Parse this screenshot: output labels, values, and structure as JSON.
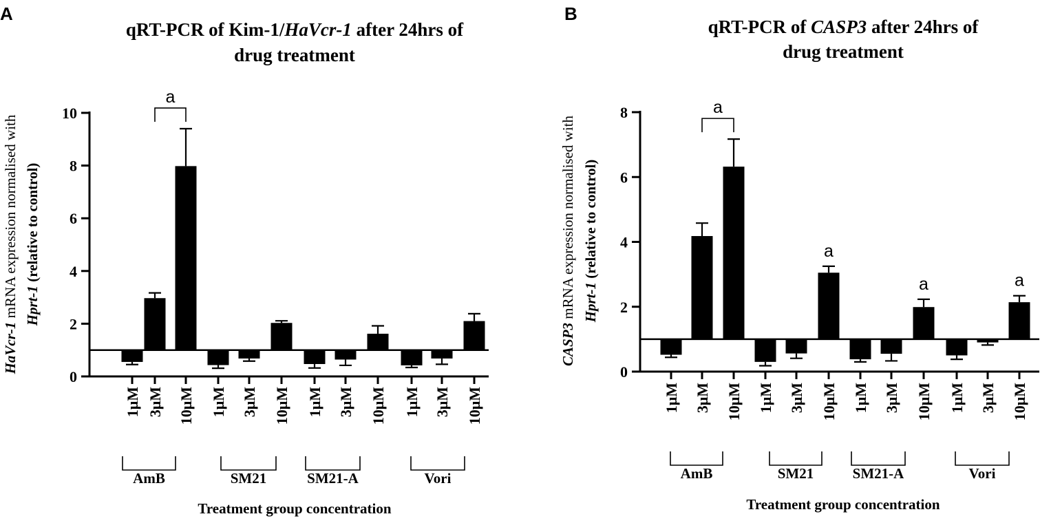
{
  "chart_data": [
    {
      "panel_label": "A",
      "type": "bar",
      "title_line1_pre": "qRT-PCR of Kim-1/",
      "title_line1_italic": "HaVcr-1",
      "title_line1_post": " after 24hrs of",
      "title_line2": "drug treatment",
      "ylabel_line1_italic": "HaVcr-1",
      "ylabel_line1_rest": " mRNA expression normalised with",
      "ylabel_line2_italic": "Hprt-1",
      "ylabel_line2_rest": " (relative to control)",
      "xlabel": "Treatment group concentration",
      "ylim": [
        0,
        10
      ],
      "yticks": [
        "0",
        "2",
        "4",
        "6",
        "8",
        "10"
      ],
      "baseline": 1,
      "categories": [
        "1μM",
        "3μM",
        "10μM",
        "1μM",
        "3μM",
        "10μM",
        "1μM",
        "3μM",
        "10μM",
        "1μM",
        "3μM",
        "10μM"
      ],
      "values": [
        0.55,
        2.97,
        7.98,
        0.43,
        0.68,
        2.03,
        0.47,
        0.64,
        1.62,
        0.42,
        0.68,
        2.1
      ],
      "errors": [
        0.1,
        0.2,
        1.42,
        0.12,
        0.1,
        0.08,
        0.15,
        0.22,
        0.3,
        0.08,
        0.22,
        0.28
      ],
      "groups": [
        "AmB",
        "SM21",
        "SM21-A",
        "Vori"
      ],
      "sig_label": "a",
      "annotations": [
        {
          "type": "bracket",
          "from": 1,
          "to": 2,
          "text": "a"
        }
      ]
    },
    {
      "panel_label": "B",
      "type": "bar",
      "title_line1_pre": "qRT-PCR of ",
      "title_line1_italic": "CASP3",
      "title_line1_post": " after 24hrs of",
      "title_line2": "drug treatment",
      "ylabel_line1_italic": "CASP3",
      "ylabel_line1_rest": " mRNA expression normalised with",
      "ylabel_line2_italic": "Hprt-1",
      "ylabel_line2_rest": " (relative to control)",
      "xlabel": "Treatment group concentration",
      "ylim": [
        0,
        8
      ],
      "yticks": [
        "0",
        "2",
        "4",
        "6",
        "8"
      ],
      "baseline": 1,
      "categories": [
        "1μM",
        "3μM",
        "10μM",
        "1μM",
        "3μM",
        "10μM",
        "1μM",
        "3μM",
        "10μM",
        "1μM",
        "3μM",
        "10μM"
      ],
      "values": [
        0.52,
        4.18,
        6.32,
        0.3,
        0.56,
        3.05,
        0.38,
        0.55,
        1.99,
        0.5,
        0.9,
        2.14
      ],
      "errors": [
        0.08,
        0.4,
        0.85,
        0.12,
        0.15,
        0.2,
        0.08,
        0.22,
        0.24,
        0.12,
        0.08,
        0.2
      ],
      "groups": [
        "AmB",
        "SM21",
        "SM21-A",
        "Vori"
      ],
      "sig_label": "a",
      "annotations": [
        {
          "type": "bracket",
          "from": 1,
          "to": 2,
          "text": "a"
        },
        {
          "type": "label",
          "index": 5,
          "text": "a"
        },
        {
          "type": "label",
          "index": 8,
          "text": "a"
        },
        {
          "type": "label",
          "index": 11,
          "text": "a"
        }
      ]
    }
  ]
}
